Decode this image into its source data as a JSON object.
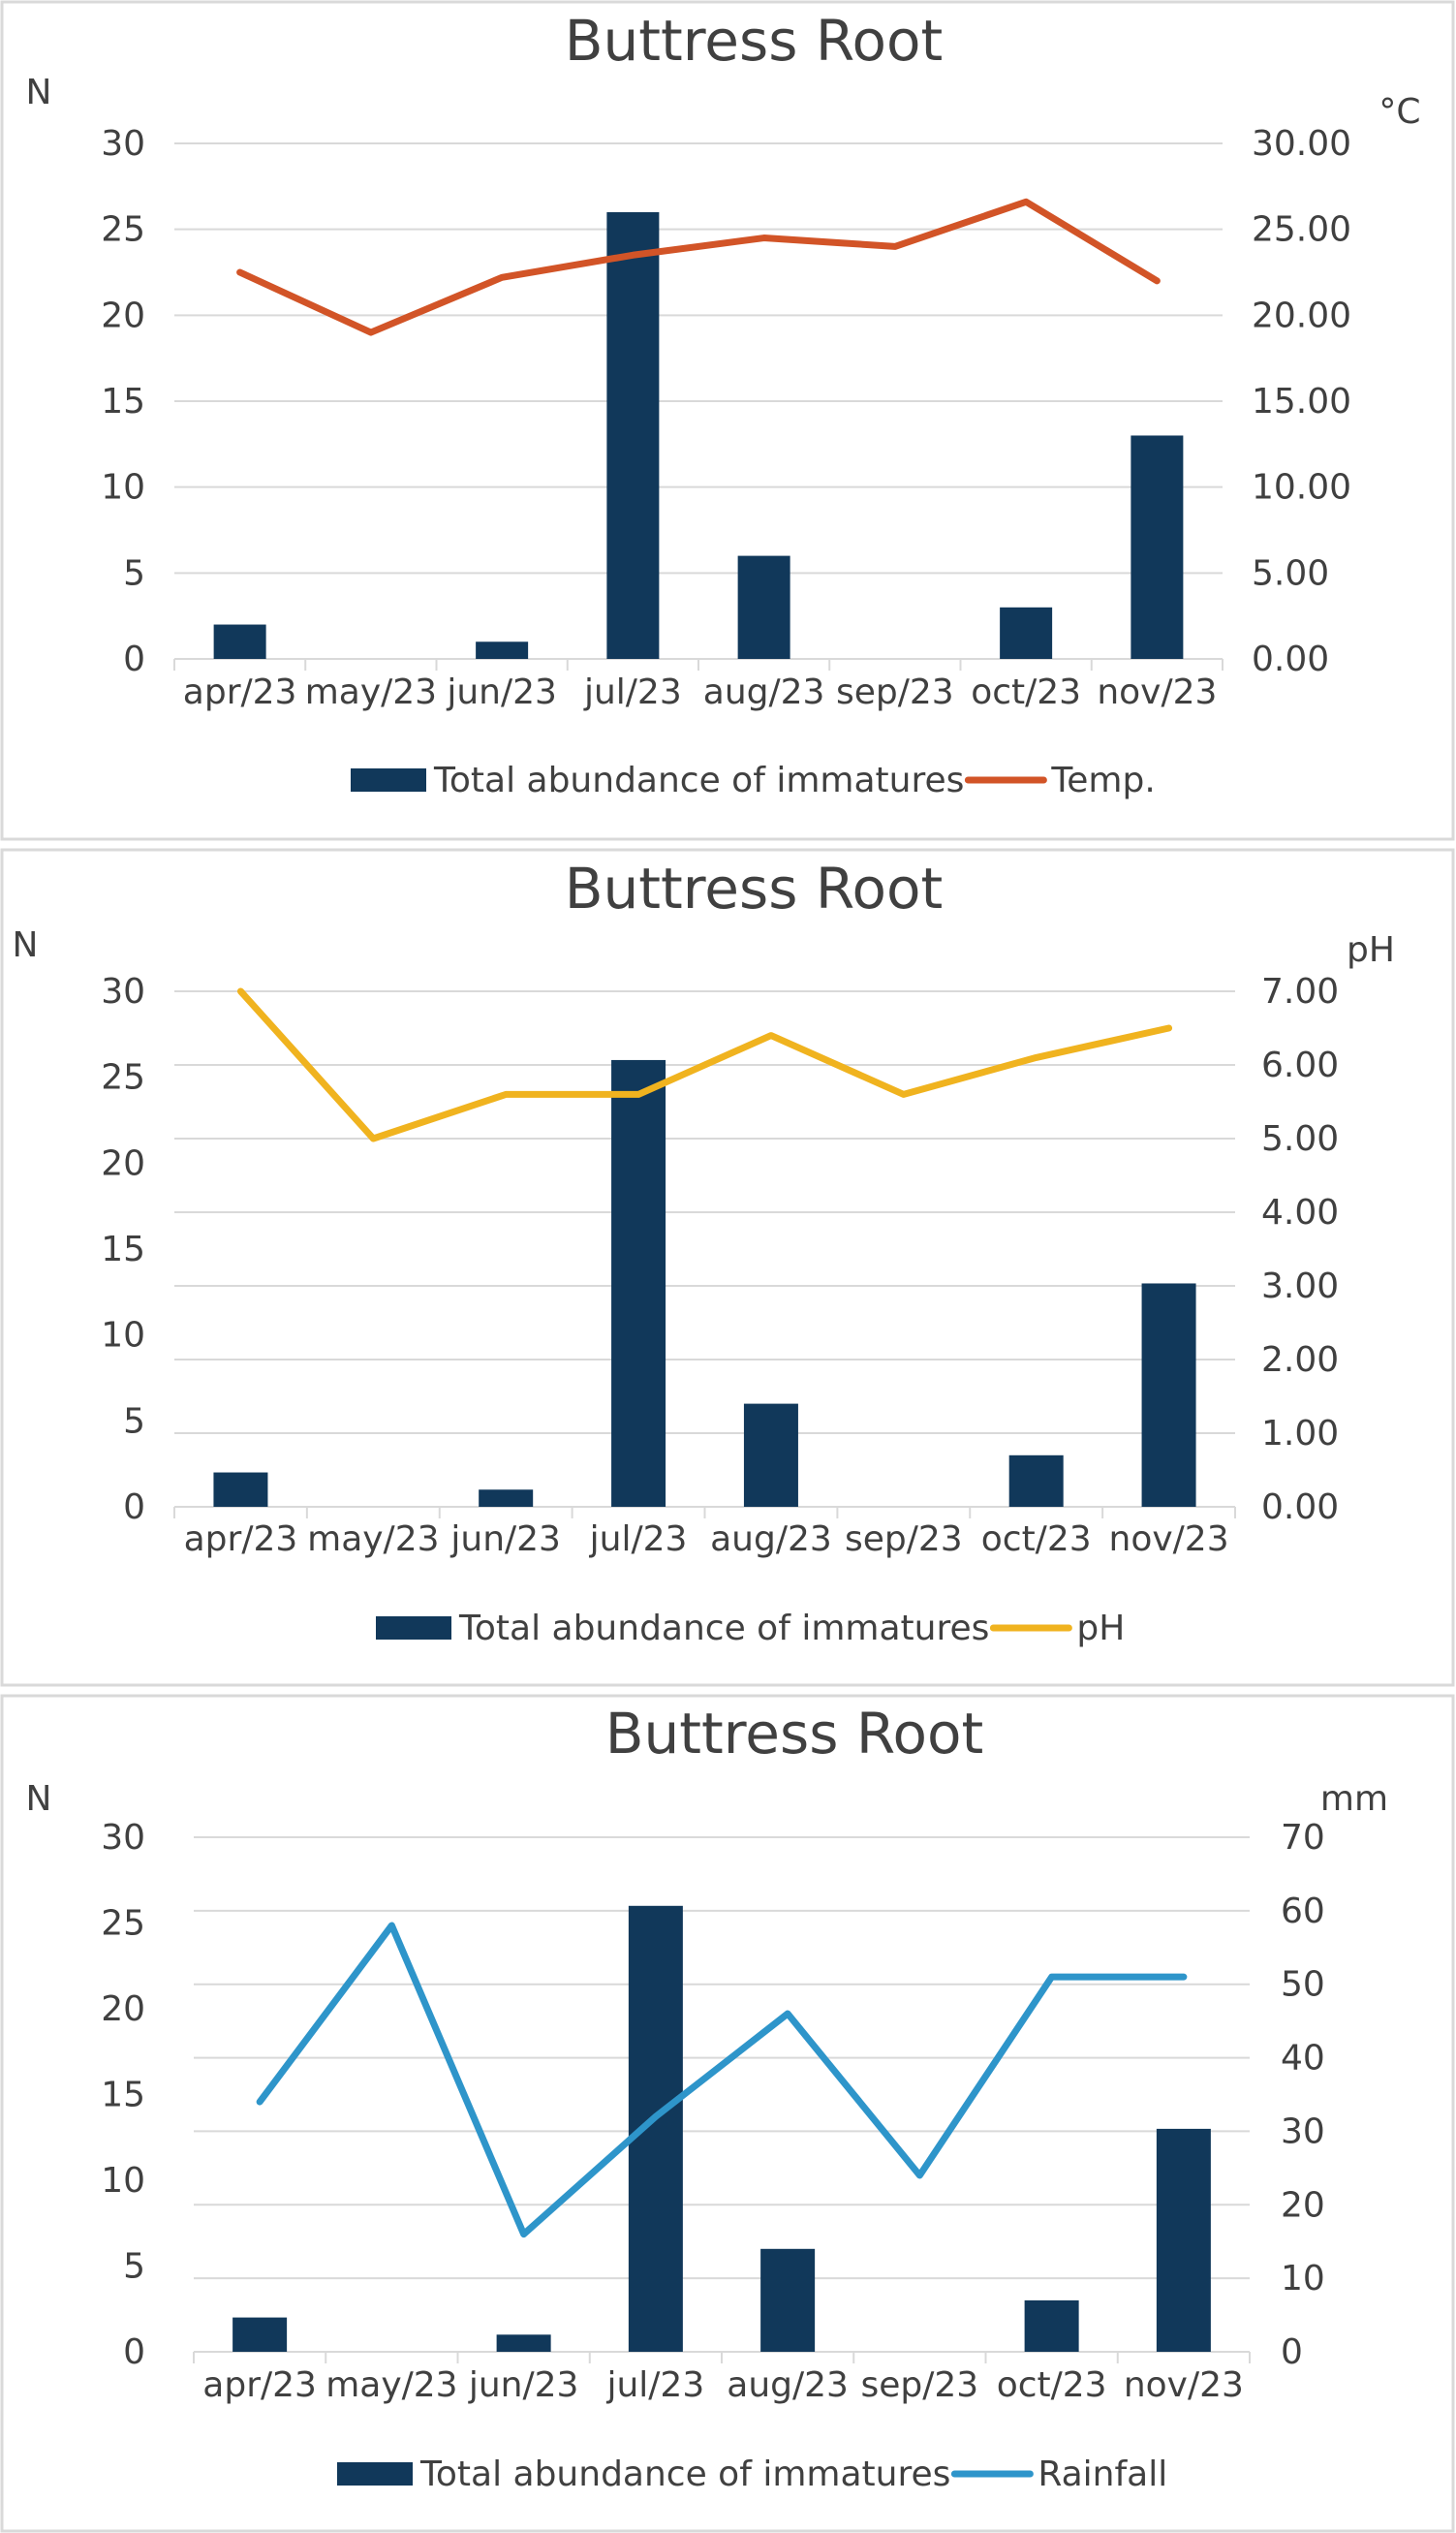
{
  "chart_data": [
    {
      "type": "bar+line",
      "title": "Buttress Root",
      "categories": [
        "apr/23",
        "may/23",
        "jun/23",
        "jul/23",
        "aug/23",
        "sep/23",
        "oct/23",
        "nov/23"
      ],
      "left_axis": {
        "label": "N",
        "ylim": [
          0,
          30
        ],
        "ticks": [
          "0",
          "5",
          "10",
          "15",
          "20",
          "25",
          "30"
        ]
      },
      "right_axis": {
        "label": "°C",
        "ylim": [
          0,
          30
        ],
        "ticks": [
          "0.00",
          "5.00",
          "10.00",
          "15.00",
          "20.00",
          "25.00",
          "30.00"
        ]
      },
      "series": [
        {
          "name": "Total abundance of immatures",
          "kind": "bar",
          "axis": "left",
          "color": "#11385a",
          "values": [
            2,
            0,
            1,
            26,
            6,
            0,
            3,
            13
          ]
        },
        {
          "name": "Temp.",
          "kind": "line",
          "axis": "right",
          "color": "#d25427",
          "values": [
            22.5,
            19.0,
            22.2,
            23.5,
            24.5,
            24.0,
            26.6,
            22.0
          ]
        }
      ],
      "legend": "bottom"
    },
    {
      "type": "bar+line",
      "title": "Buttress Root",
      "categories": [
        "apr/23",
        "may/23",
        "jun/23",
        "jul/23",
        "aug/23",
        "sep/23",
        "oct/23",
        "nov/23"
      ],
      "left_axis": {
        "label": "N",
        "ylim": [
          0,
          30
        ],
        "ticks": [
          "0",
          "5",
          "10",
          "15",
          "20",
          "25",
          "30"
        ]
      },
      "right_axis": {
        "label": "pH",
        "ylim": [
          0,
          7
        ],
        "ticks": [
          "0.00",
          "1.00",
          "2.00",
          "3.00",
          "4.00",
          "5.00",
          "6.00",
          "7.00"
        ]
      },
      "series": [
        {
          "name": "Total abundance of immatures",
          "kind": "bar",
          "axis": "left",
          "color": "#11385a",
          "values": [
            2,
            0,
            1,
            26,
            6,
            0,
            3,
            13
          ]
        },
        {
          "name": "pH",
          "kind": "line",
          "axis": "right",
          "color": "#f0b31f",
          "values": [
            7.0,
            5.0,
            5.6,
            5.6,
            6.4,
            5.6,
            6.1,
            6.5
          ]
        }
      ],
      "legend": "bottom"
    },
    {
      "type": "bar+line",
      "title": "Buttress Root",
      "categories": [
        "apr/23",
        "may/23",
        "jun/23",
        "jul/23",
        "aug/23",
        "sep/23",
        "oct/23",
        "nov/23"
      ],
      "left_axis": {
        "label": "N",
        "ylim": [
          0,
          30
        ],
        "ticks": [
          "0",
          "5",
          "10",
          "15",
          "20",
          "25",
          "30"
        ]
      },
      "right_axis": {
        "label": "mm",
        "ylim": [
          0,
          70
        ],
        "ticks": [
          "0",
          "10",
          "20",
          "30",
          "40",
          "50",
          "60",
          "70"
        ]
      },
      "series": [
        {
          "name": "Total abundance of immatures",
          "kind": "bar",
          "axis": "left",
          "color": "#11385a",
          "values": [
            2,
            0,
            1,
            26,
            6,
            0,
            3,
            13
          ]
        },
        {
          "name": "Rainfall",
          "kind": "line",
          "axis": "right",
          "color": "#2e95ca",
          "values": [
            34,
            58,
            16,
            32,
            46,
            24,
            51,
            51
          ]
        }
      ],
      "legend": "bottom"
    }
  ]
}
